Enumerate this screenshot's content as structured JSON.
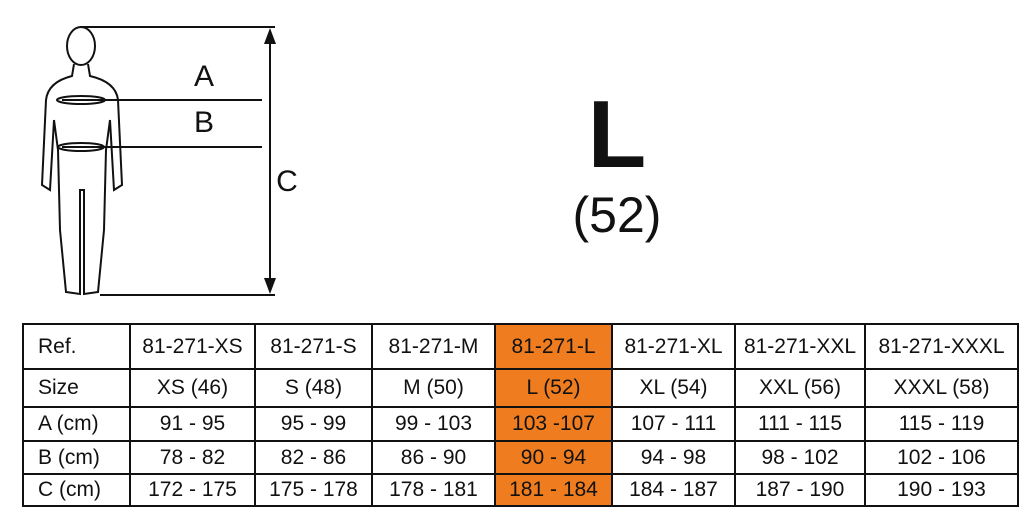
{
  "figure": {
    "labels": [
      "A",
      "B",
      "C"
    ]
  },
  "size": {
    "letter": "L",
    "number": "(52)"
  },
  "table": {
    "highlighted_column": 4,
    "highlight_color": "#ef7d1f",
    "rows": [
      [
        "Ref.",
        "81-271-XS",
        "81-271-S",
        "81-271-M",
        "81-271-L",
        "81-271-XL",
        "81-271-XXL",
        "81-271-XXXL"
      ],
      [
        "Size",
        "XS (46)",
        "S (48)",
        "M (50)",
        "L (52)",
        "XL (54)",
        "XXL (56)",
        "XXXL (58)"
      ],
      [
        "A (cm)",
        "91 - 95",
        "95 - 99",
        "99 - 103",
        "103 -107",
        "107 - 111",
        "111 - 115",
        "115  - 119"
      ],
      [
        "B (cm)",
        "78 - 82",
        "82 - 86",
        "86 - 90",
        "90 - 94",
        "94 - 98",
        "98 - 102",
        "102 - 106"
      ],
      [
        "C (cm)",
        "172 - 175",
        "175 - 178",
        "178 - 181",
        "181 - 184",
        "184 - 187",
        "187 - 190",
        "190 - 193"
      ]
    ]
  }
}
